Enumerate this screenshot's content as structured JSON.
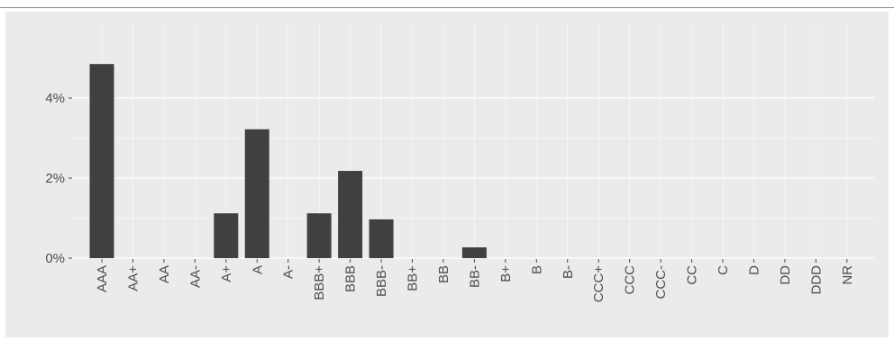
{
  "chart_data": {
    "type": "bar",
    "categories": [
      "AAA",
      "AA+",
      "AA",
      "AA-",
      "A+",
      "A",
      "A-",
      "BBB+",
      "BBB",
      "BBB-",
      "BB+",
      "BB",
      "BB-",
      "B+",
      "B",
      "B-",
      "CCC+",
      "CCC",
      "CCC-",
      "CC",
      "C",
      "D",
      "DD",
      "DDD",
      "NR"
    ],
    "values": [
      4.85,
      0,
      0,
      0,
      1.12,
      3.22,
      0,
      1.12,
      2.18,
      0.97,
      0,
      0,
      0.27,
      0,
      0,
      0,
      0,
      0,
      0,
      0,
      0,
      0,
      0,
      0,
      0
    ],
    "y_ticks": [
      0,
      2,
      4
    ],
    "y_tick_labels": [
      "0%",
      "2%",
      "4%"
    ],
    "ylim": [
      0,
      5.8
    ],
    "title": "",
    "xlabel": "",
    "ylabel": "",
    "grid": true,
    "legend": "none",
    "colors": {
      "bar": "#404040",
      "panel": "#ebebeb",
      "grid": "#ffffff",
      "text": "#4d4d4d"
    }
  }
}
